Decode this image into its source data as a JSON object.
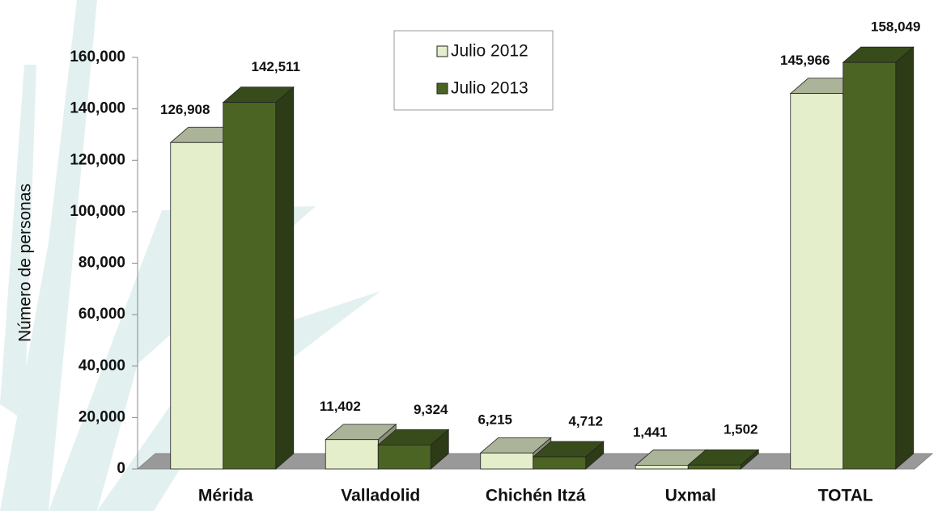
{
  "chart_data": {
    "type": "bar3d",
    "y_label": "Número de personas",
    "categories": [
      "Mérida",
      "Valladolid",
      "Chichén Itzá",
      "Uxmal",
      "TOTAL"
    ],
    "series": [
      {
        "name": "Julio 2012",
        "color": "#e4eecb",
        "values": [
          126908,
          11402,
          6215,
          1441,
          145966
        ],
        "value_labels": [
          "126,908",
          "11,402",
          "6,215",
          "1,441",
          "145,966"
        ]
      },
      {
        "name": "Julio 2013",
        "color": "#4b6424",
        "values": [
          142511,
          9324,
          4712,
          1502,
          158049
        ],
        "value_labels": [
          "142,511",
          "9,324",
          "4,712",
          "1,502",
          "158,049"
        ]
      }
    ],
    "ylim": [
      0,
      160000
    ],
    "yticks": [
      0,
      {
        "value": 20000,
        "label": "20,000"
      },
      {
        "value": 40000,
        "label": "40,000"
      },
      {
        "value": 60000,
        "label": "60,000"
      },
      {
        "value": 80000,
        "label": "80,000"
      },
      {
        "value": 100000,
        "label": "100,000"
      },
      {
        "value": 120000,
        "label": "120,000"
      },
      {
        "value": 140000,
        "label": "140,000"
      },
      {
        "value": 160000,
        "label": "160,000"
      }
    ]
  }
}
